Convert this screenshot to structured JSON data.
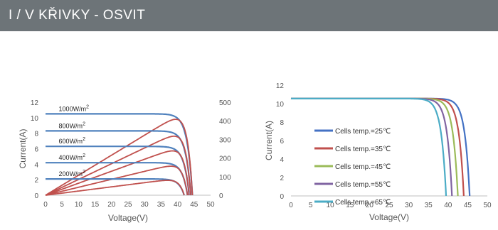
{
  "header": {
    "title": "I / V KŘIVKY - OSVIT"
  },
  "colors": {
    "header_bg": "#6d7478",
    "iv_curve": "#4f81bd",
    "power_curve": "#c0504d"
  },
  "chart_data": [
    {
      "type": "line",
      "title": "",
      "xlabel": "Voltage(V)",
      "ylabel": "Current(A)",
      "xlim": [
        0,
        50
      ],
      "ylim": [
        0,
        12
      ],
      "y2lim": [
        0,
        500
      ],
      "x_ticks": [
        "0",
        "5",
        "10",
        "15",
        "20",
        "25",
        "30",
        "35",
        "40",
        "45",
        "50"
      ],
      "y_ticks": [
        "0",
        "2",
        "4",
        "6",
        "8",
        "10",
        "12"
      ],
      "y2_ticks": [
        "0",
        "100",
        "200",
        "300",
        "400",
        "500"
      ],
      "legend": "none",
      "grid": false,
      "series": [
        {
          "name": "1000W/m²",
          "label_parts": [
            "1000W/m",
            "2"
          ],
          "isc": 10.5,
          "voc": 44.5,
          "vmp": 37,
          "imp": 10.3,
          "pmax": 395
        },
        {
          "name": "800W/m²",
          "label_parts": [
            "800W/m",
            "2"
          ],
          "isc": 8.3,
          "voc": 44.0,
          "vmp": 37,
          "imp": 8.1,
          "pmax": 310
        },
        {
          "name": "600W/m²",
          "label_parts": [
            "600W/m",
            "2"
          ],
          "isc": 6.3,
          "voc": 43.5,
          "vmp": 37,
          "imp": 6.1,
          "pmax": 235
        },
        {
          "name": "400W/m²",
          "label_parts": [
            "400W/m",
            "2"
          ],
          "isc": 4.2,
          "voc": 43.0,
          "vmp": 37,
          "imp": 4.05,
          "pmax": 155
        },
        {
          "name": "200W/m²",
          "label_parts": [
            "200W/m",
            "2"
          ],
          "isc": 2.1,
          "voc": 42.0,
          "vmp": 37,
          "imp": 2.0,
          "pmax": 80
        }
      ]
    },
    {
      "type": "line",
      "title": "",
      "xlabel": "Voltage(V)",
      "ylabel": "Current(A)",
      "xlim": [
        0,
        50
      ],
      "ylim": [
        0,
        12
      ],
      "x_ticks": [
        "0",
        "5",
        "10",
        "15",
        "20",
        "25",
        "30",
        "35",
        "40",
        "45",
        "50"
      ],
      "y_ticks": [
        "0",
        "2",
        "4",
        "6",
        "8",
        "10",
        "12"
      ],
      "legend": "left",
      "grid": false,
      "series": [
        {
          "name": "Cells temp.=25℃",
          "color": "#4472c4",
          "isc": 10.55,
          "voc": 45.5
        },
        {
          "name": "Cells temp.=35℃",
          "color": "#c0504d",
          "isc": 10.55,
          "voc": 44.0
        },
        {
          "name": "Cells temp.=45℃",
          "color": "#9bbb59",
          "isc": 10.55,
          "voc": 42.5
        },
        {
          "name": "Cells temp.=55℃",
          "color": "#8064a2",
          "isc": 10.55,
          "voc": 41.0
        },
        {
          "name": "Cells temp.=65℃",
          "color": "#4bacc6",
          "isc": 10.55,
          "voc": 39.5
        }
      ]
    }
  ]
}
